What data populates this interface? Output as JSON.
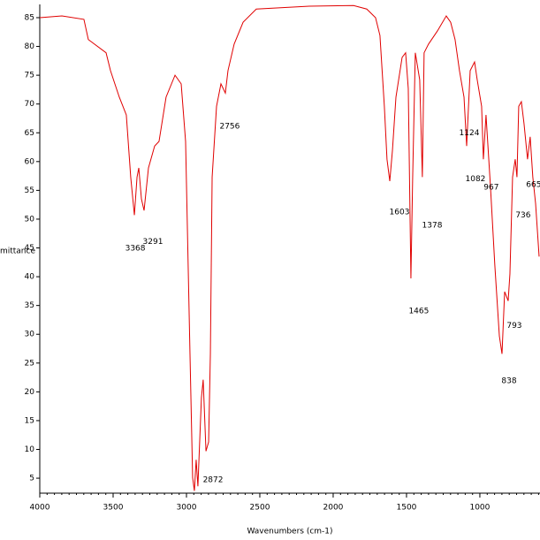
{
  "chart_data": {
    "type": "line",
    "x_label": "Wavenumbers (cm-1)",
    "y_label": "%Transmittance",
    "xlim": [
      4000,
      590
    ],
    "ylim": [
      2.4,
      87.3
    ],
    "xticks": [
      4000,
      3500,
      3000,
      2500,
      2000,
      1500,
      1000
    ],
    "yticks": [
      5,
      10,
      15,
      20,
      25,
      30,
      35,
      40,
      45,
      50,
      55,
      60,
      65,
      70,
      75,
      80,
      85
    ],
    "x_reversed": true,
    "series": [
      {
        "color": "#e00000",
        "x": [
          4000,
          3849,
          3699,
          3669,
          3548,
          3518,
          3458,
          3410,
          3380,
          3355,
          3337,
          3325,
          3307,
          3289,
          3259,
          3217,
          3187,
          3139,
          3078,
          3036,
          3006,
          2976,
          2958,
          2946,
          2934,
          2922,
          2898,
          2886,
          2867,
          2849,
          2837,
          2825,
          2795,
          2765,
          2735,
          2717,
          2675,
          2614,
          2524,
          2163,
          1861,
          1771,
          1711,
          1681,
          1651,
          1633,
          1614,
          1596,
          1572,
          1530,
          1506,
          1488,
          1470,
          1458,
          1440,
          1410,
          1392,
          1380,
          1350,
          1289,
          1229,
          1199,
          1169,
          1139,
          1108,
          1090,
          1066,
          1036,
          1018,
          988,
          976,
          958,
          928,
          898,
          867,
          849,
          831,
          807,
          795,
          777,
          759,
          747,
          735,
          717,
          699,
          675,
          657,
          639,
          620,
          596
        ],
        "values": [
          85.0,
          85.3,
          84.7,
          81.2,
          78.9,
          75.8,
          71.2,
          68.1,
          57.3,
          50.7,
          57.3,
          58.9,
          53.5,
          51.5,
          58.9,
          62.7,
          63.5,
          71.2,
          75.0,
          73.5,
          63.5,
          26.6,
          5.1,
          2.8,
          8.2,
          3.6,
          19.0,
          22.1,
          9.7,
          11.3,
          26.6,
          57.3,
          69.6,
          73.5,
          71.9,
          75.8,
          80.4,
          84.2,
          86.5,
          87.0,
          87.1,
          86.5,
          85.0,
          81.9,
          69.6,
          60.4,
          56.6,
          61.9,
          71.2,
          78.1,
          78.9,
          72.7,
          39.7,
          57.3,
          78.9,
          74.2,
          57.3,
          78.9,
          80.4,
          82.7,
          85.3,
          84.2,
          81.2,
          75.8,
          71.2,
          62.7,
          75.8,
          77.3,
          74.2,
          69.6,
          60.4,
          68.1,
          55.8,
          42.0,
          29.7,
          26.6,
          37.4,
          35.8,
          40.5,
          57.3,
          60.4,
          57.3,
          69.6,
          70.4,
          66.6,
          60.4,
          64.3,
          57.3,
          52.7,
          43.5
        ]
      }
    ],
    "annotations": [
      {
        "text": "3368",
        "x": 3349,
        "y": 44.9
      },
      {
        "text": "3291",
        "x": 3229,
        "y": 46.1
      },
      {
        "text": "2756",
        "x": 2705,
        "y": 66.1
      },
      {
        "text": "2872",
        "x": 2819,
        "y": 4.7
      },
      {
        "text": "1603",
        "x": 1548,
        "y": 51.2
      },
      {
        "text": "1378",
        "x": 1325,
        "y": 48.9
      },
      {
        "text": "1465",
        "x": 1416,
        "y": 34.0
      },
      {
        "text": "1124",
        "x": 1072,
        "y": 65.0
      },
      {
        "text": "1082",
        "x": 1030,
        "y": 57.0
      },
      {
        "text": "967",
        "x": 922,
        "y": 55.5
      },
      {
        "text": "665",
        "x": 633,
        "y": 56.0
      },
      {
        "text": "736",
        "x": 705,
        "y": 50.7
      },
      {
        "text": "793",
        "x": 765,
        "y": 31.5
      },
      {
        "text": "838",
        "x": 801,
        "y": 21.9
      }
    ]
  }
}
